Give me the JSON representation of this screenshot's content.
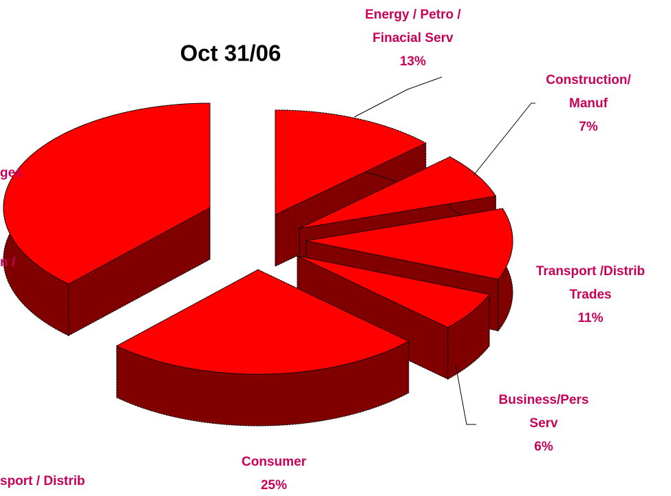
{
  "chart_data": {
    "type": "pie3d",
    "title": "Oct  31/06",
    "categories": [
      [
        "Energy / Petro /",
        "Finacial Serv"
      ],
      [
        "Construction/",
        "Manuf"
      ],
      [
        "Transport /Distrib",
        "Trades"
      ],
      [
        "Business/Pers",
        "Serv"
      ],
      [
        "Consumer"
      ],
      null
    ],
    "values": [
      13,
      7,
      11,
      6,
      25,
      38
    ],
    "value_labels": [
      "13%",
      "7%",
      "11%",
      "6%",
      "25%",
      null
    ],
    "annotations": [
      "ges",
      "n /",
      "sport / Distrib"
    ],
    "color": "#ff0000",
    "side_color": "#800000",
    "label_color": "#c8005a"
  }
}
